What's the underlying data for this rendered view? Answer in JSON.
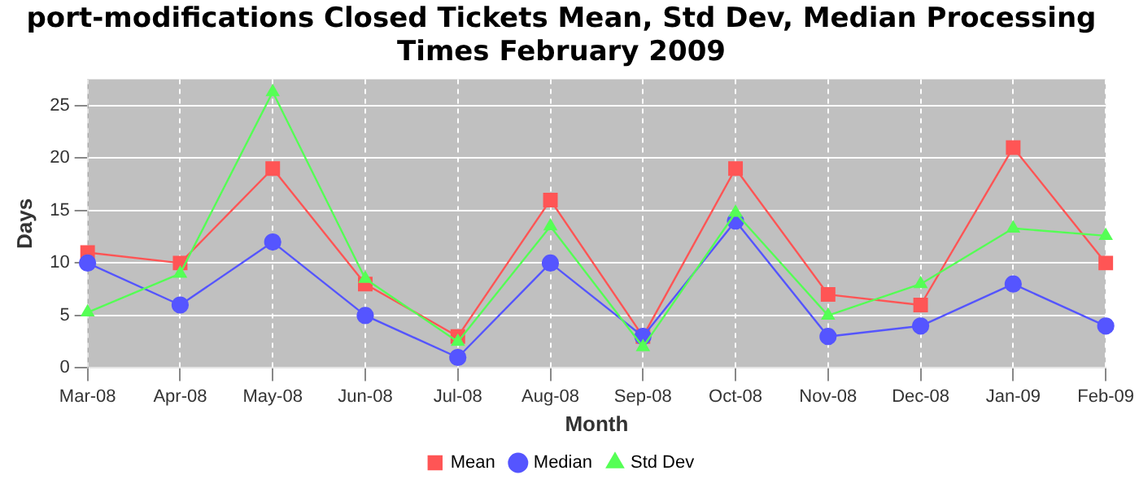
{
  "chart_data": {
    "type": "line",
    "title": "port-modifications Closed Tickets Mean, Std Dev, Median Processing Times February 2009",
    "xlabel": "Month",
    "ylabel": "Days",
    "categories": [
      "Mar-08",
      "Apr-08",
      "May-08",
      "Jun-08",
      "Jul-08",
      "Aug-08",
      "Sep-08",
      "Oct-08",
      "Nov-08",
      "Dec-08",
      "Jan-09",
      "Feb-09"
    ],
    "series": [
      {
        "name": "Mean",
        "color": "#ff5555",
        "marker": "square",
        "values": [
          11,
          10,
          19,
          8,
          3,
          16,
          3,
          19,
          7,
          6,
          21,
          10
        ]
      },
      {
        "name": "Median",
        "color": "#5555ff",
        "marker": "circle",
        "values": [
          10,
          6,
          12,
          5,
          1,
          10,
          3,
          14,
          3,
          4,
          8,
          4
        ]
      },
      {
        "name": "Std Dev",
        "color": "#55ff55",
        "marker": "triangle",
        "values": [
          5.3,
          9,
          26.3,
          8.5,
          2.5,
          13.5,
          2,
          14.8,
          5,
          8,
          13.3,
          12.6
        ]
      }
    ],
    "ylim": [
      0,
      27.5
    ],
    "yticks": [
      0,
      5,
      10,
      15,
      20,
      25
    ],
    "grid": true,
    "legend": "bottom",
    "line_style": "solid"
  }
}
